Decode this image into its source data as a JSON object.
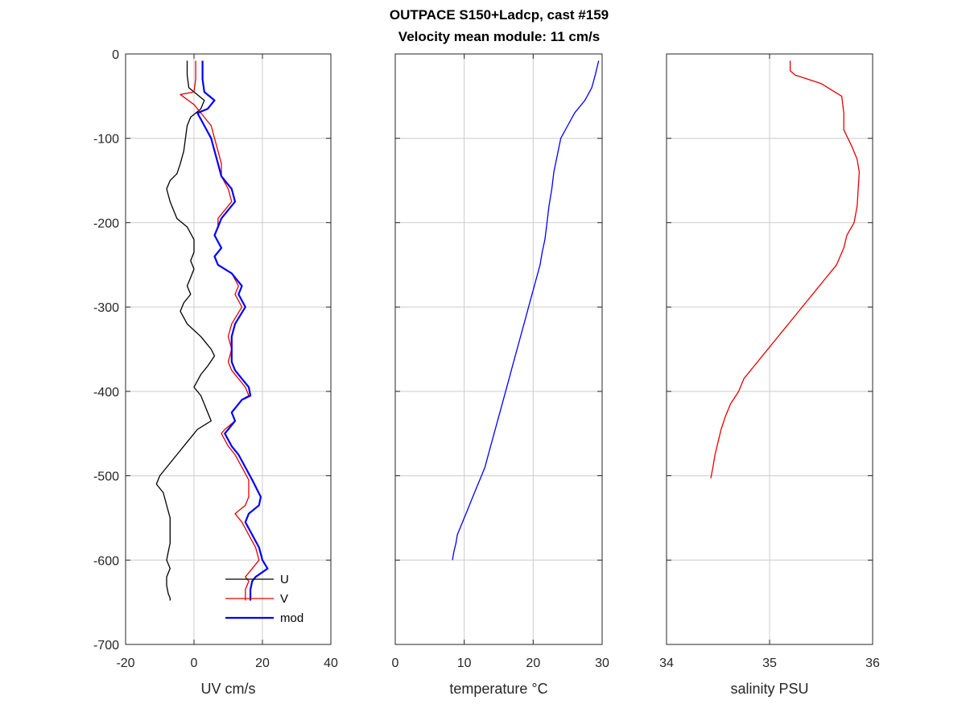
{
  "chart_data": {
    "title": [
      "OUTPACE S150+Ladcp, cast #159",
      "Velocity mean module:  11 cm/s"
    ],
    "panels": [
      {
        "type": "line",
        "xlabel": "UV cm/s",
        "xlim": [
          -20,
          40
        ],
        "ylim": [
          -700,
          0
        ],
        "xticks": [
          -20,
          0,
          20,
          40
        ],
        "yticks": [
          -700,
          -600,
          -500,
          -400,
          -300,
          -200,
          -100,
          0
        ],
        "grid": true,
        "legend": {
          "placement": "bottom-center",
          "entries": [
            "U",
            "V",
            "mod"
          ]
        },
        "series": [
          {
            "name": "U",
            "color": "#000000",
            "width": 1.3,
            "x": [
              -2,
              -2,
              -1.5,
              3,
              2,
              -1,
              -2,
              -2.5,
              -3,
              -4,
              -5,
              -7,
              -8,
              -7,
              -6,
              -5,
              -2,
              0,
              0,
              -1,
              0,
              -1,
              -2,
              -1,
              -3,
              -4,
              -2,
              2,
              5,
              6,
              4,
              2,
              0,
              2,
              3,
              4,
              5,
              1,
              -2,
              -5,
              -8,
              -10,
              -11,
              -9,
              -8,
              -7,
              -7,
              -7,
              -7.5,
              -8,
              -7,
              -8,
              -8,
              -7.5,
              -7,
              -7
            ],
            "y": [
              -8,
              -25,
              -40,
              -55,
              -65,
              -75,
              -85,
              -100,
              -115,
              -130,
              -142,
              -150,
              -160,
              -175,
              -185,
              -195,
              -205,
              -220,
              -235,
              -245,
              -255,
              -265,
              -275,
              -285,
              -295,
              -305,
              -320,
              -335,
              -350,
              -358,
              -370,
              -380,
              -395,
              -405,
              -415,
              -425,
              -435,
              -445,
              -460,
              -475,
              -490,
              -500,
              -510,
              -520,
              -535,
              -550,
              -565,
              -580,
              -590,
              -600,
              -610,
              -620,
              -630,
              -640,
              -645,
              -648
            ]
          },
          {
            "name": "V",
            "color": "#e60000",
            "width": 1.3,
            "x": [
              0.5,
              0.5,
              0,
              -4,
              0,
              3,
              5,
              6,
              7,
              8,
              8,
              10,
              11,
              9,
              7,
              7,
              6,
              8,
              6,
              7,
              11,
              13,
              12,
              14,
              11,
              10,
              11,
              10,
              11,
              13,
              15,
              16,
              14,
              11,
              12,
              9,
              8,
              10,
              12,
              14,
              16,
              16,
              15,
              12,
              14,
              16,
              18,
              19,
              17,
              15,
              16,
              15,
              15
            ],
            "y": [
              -8,
              -30,
              -45,
              -48,
              -60,
              -75,
              -85,
              -100,
              -115,
              -130,
              -145,
              -160,
              -175,
              -185,
              -195,
              -205,
              -215,
              -230,
              -240,
              -250,
              -260,
              -275,
              -285,
              -300,
              -320,
              -335,
              -350,
              -365,
              -375,
              -385,
              -395,
              -405,
              -410,
              -425,
              -435,
              -445,
              -450,
              -465,
              -475,
              -490,
              -505,
              -525,
              -535,
              -545,
              -555,
              -570,
              -585,
              -600,
              -610,
              -620,
              -625,
              -635,
              -648
            ]
          },
          {
            "name": "mod",
            "color": "#0000ff",
            "width": 2.2,
            "x": [
              2.5,
              2.5,
              3,
              6,
              4,
              1,
              3,
              5,
              6,
              7,
              8,
              11,
              12,
              10,
              8,
              7,
              6,
              8,
              6,
              7,
              11,
              14,
              13,
              15,
              12,
              11,
              11,
              11,
              12,
              14,
              16,
              16.5,
              14,
              11,
              12,
              10,
              9,
              11,
              13,
              15,
              17,
              19.5,
              19,
              16,
              15,
              17,
              19,
              20,
              21.5,
              18,
              17,
              16.5,
              16.5
            ],
            "y": [
              -8,
              -30,
              -45,
              -55,
              -65,
              -70,
              -85,
              -100,
              -115,
              -130,
              -145,
              -160,
              -175,
              -185,
              -195,
              -205,
              -215,
              -230,
              -240,
              -250,
              -260,
              -275,
              -285,
              -300,
              -320,
              -335,
              -350,
              -365,
              -375,
              -385,
              -395,
              -405,
              -410,
              -425,
              -435,
              -445,
              -450,
              -465,
              -475,
              -490,
              -505,
              -525,
              -535,
              -545,
              -555,
              -570,
              -585,
              -600,
              -610,
              -620,
              -625,
              -635,
              -648
            ]
          }
        ]
      },
      {
        "type": "line",
        "xlabel": "temperature °C",
        "xlim": [
          0,
          30
        ],
        "ylim": [
          -700,
          0
        ],
        "xticks": [
          0,
          10,
          20,
          30
        ],
        "yticks": [
          -700,
          -600,
          -500,
          -400,
          -300,
          -200,
          -100,
          0
        ],
        "grid": true,
        "series": [
          {
            "name": "",
            "color": "#0000ff",
            "width": 1.3,
            "x": [
              29.5,
              29,
              28.5,
              27.5,
              26,
              25,
              24,
              23.5,
              23,
              22.7,
              22.3,
              22,
              21.7,
              21.3,
              21,
              20.5,
              20,
              19.5,
              19,
              18.5,
              18,
              17.5,
              17,
              16.5,
              16,
              15.5,
              15,
              14.5,
              14,
              13.5,
              13,
              12.5,
              12,
              11.5,
              11,
              10.5,
              10,
              9.5,
              9,
              8.8,
              8.5,
              8.3
            ],
            "y": [
              -8,
              -25,
              -40,
              -55,
              -70,
              -85,
              -100,
              -120,
              -140,
              -160,
              -180,
              -200,
              -220,
              -235,
              -250,
              -265,
              -280,
              -295,
              -310,
              -325,
              -340,
              -355,
              -370,
              -385,
              -400,
              -415,
              -430,
              -445,
              -460,
              -475,
              -490,
              -500,
              -510,
              -520,
              -530,
              -540,
              -550,
              -560,
              -570,
              -580,
              -590,
              -600
            ]
          }
        ]
      },
      {
        "type": "line",
        "xlabel": "salinity PSU",
        "xlim": [
          34,
          36
        ],
        "ylim": [
          -700,
          0
        ],
        "xticks": [
          34,
          35,
          36
        ],
        "yticks": [
          -700,
          -600,
          -500,
          -400,
          -300,
          -200,
          -100,
          0
        ],
        "grid": true,
        "series": [
          {
            "name": "",
            "color": "#e60000",
            "width": 1.3,
            "x": [
              35.2,
              35.2,
              35.25,
              35.5,
              35.7,
              35.72,
              35.72,
              35.8,
              35.85,
              35.87,
              35.86,
              35.85,
              35.82,
              35.75,
              35.72,
              35.65,
              35.55,
              35.45,
              35.35,
              35.25,
              35.15,
              35.05,
              34.95,
              34.85,
              34.75,
              34.7,
              34.62,
              34.57,
              34.53,
              34.5,
              34.47,
              34.45,
              34.43
            ],
            "y": [
              -8,
              -20,
              -25,
              -35,
              -50,
              -70,
              -90,
              -110,
              -125,
              -140,
              -160,
              -180,
              -200,
              -215,
              -230,
              -250,
              -265,
              -280,
              -295,
              -310,
              -325,
              -340,
              -355,
              -370,
              -385,
              -400,
              -415,
              -430,
              -445,
              -460,
              -475,
              -490,
              -503
            ]
          }
        ]
      }
    ]
  }
}
